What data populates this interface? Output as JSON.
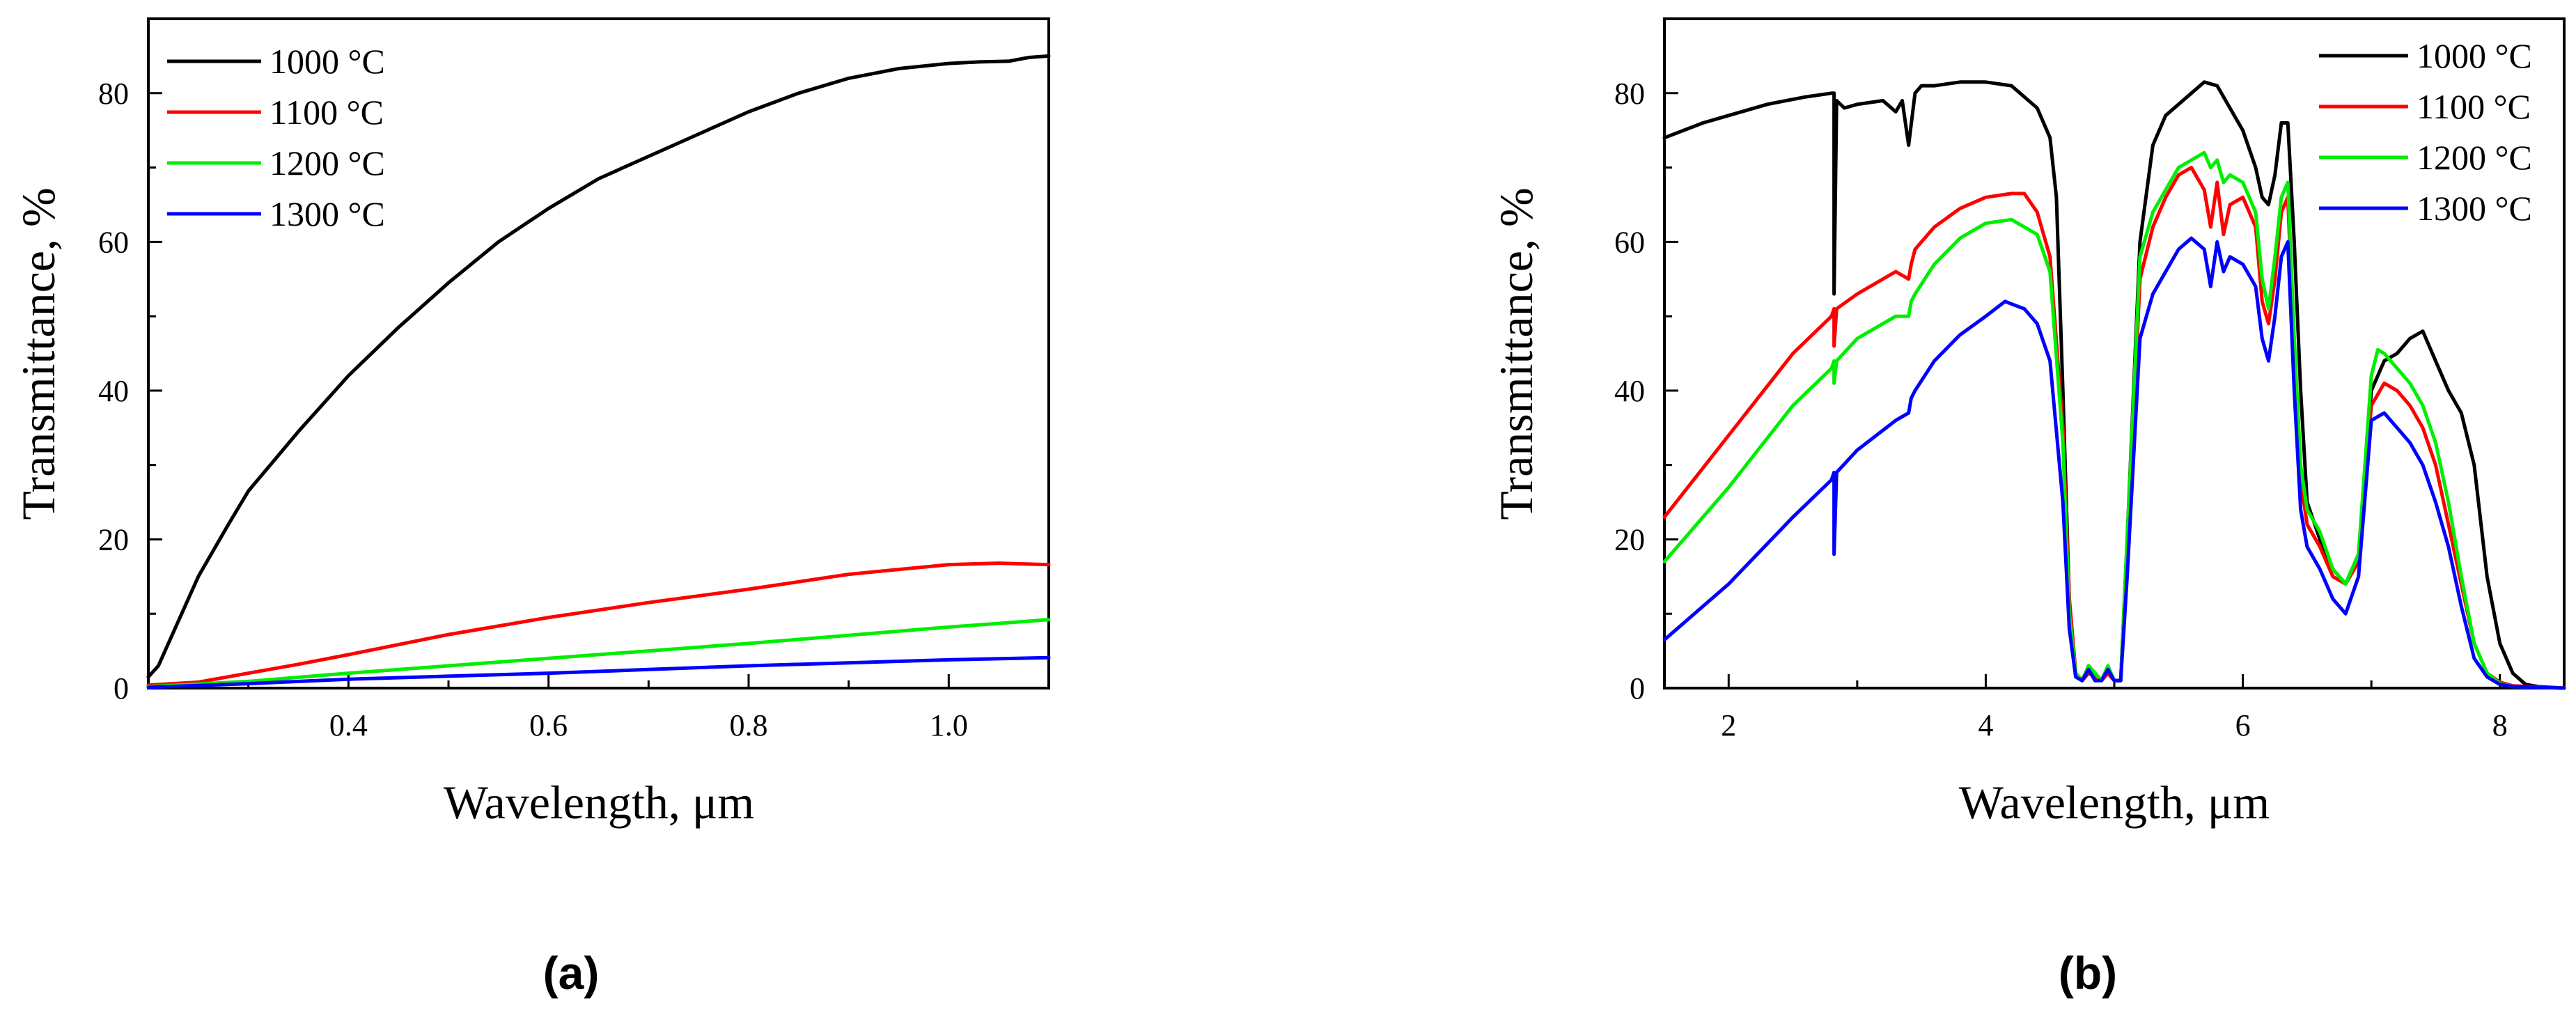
{
  "chart_data": [
    {
      "type": "line",
      "panel_label": "(a)",
      "xlabel": "Wavelength, μm",
      "ylabel": "Transmittance, %",
      "xlim": [
        0.2,
        1.1
      ],
      "ylim": [
        0,
        90
      ],
      "xticks": [
        0.4,
        0.6,
        0.8,
        1.0
      ],
      "xtick_labels": [
        "0.4",
        "0.6",
        "0.8",
        "1.0"
      ],
      "yticks": [
        0,
        20,
        40,
        60,
        80
      ],
      "ytick_labels": [
        "0",
        "20",
        "40",
        "60",
        "80"
      ],
      "legend_position": "top-left",
      "series": [
        {
          "name": "1000 °C",
          "color": "#000000",
          "x": [
            0.2,
            0.21,
            0.23,
            0.25,
            0.28,
            0.3,
            0.35,
            0.4,
            0.45,
            0.5,
            0.55,
            0.6,
            0.65,
            0.7,
            0.75,
            0.8,
            0.85,
            0.9,
            0.95,
            1.0,
            1.03,
            1.06,
            1.08,
            1.1
          ],
          "y": [
            1.5,
            3,
            9,
            15,
            22,
            26.5,
            34.5,
            42,
            48.5,
            54.5,
            60,
            64.5,
            68.5,
            71.5,
            74.5,
            77.5,
            80,
            82,
            83.3,
            84,
            84.2,
            84.3,
            84.8,
            85
          ]
        },
        {
          "name": "1100 °C",
          "color": "#ff0000",
          "x": [
            0.2,
            0.25,
            0.3,
            0.35,
            0.4,
            0.5,
            0.6,
            0.7,
            0.8,
            0.9,
            1.0,
            1.05,
            1.1
          ],
          "y": [
            0.4,
            0.8,
            2,
            3.2,
            4.5,
            7.2,
            9.5,
            11.5,
            13.3,
            15.3,
            16.6,
            16.8,
            16.6
          ]
        },
        {
          "name": "1200 °C",
          "color": "#00ee00",
          "x": [
            0.2,
            0.3,
            0.4,
            0.5,
            0.6,
            0.7,
            0.8,
            0.9,
            1.0,
            1.1
          ],
          "y": [
            0.2,
            0.9,
            2,
            3,
            4,
            5,
            6,
            7.1,
            8.2,
            9.2
          ]
        },
        {
          "name": "1300 °C",
          "color": "#0000ff",
          "x": [
            0.2,
            0.3,
            0.4,
            0.5,
            0.6,
            0.7,
            0.8,
            0.9,
            1.0,
            1.1
          ],
          "y": [
            0.1,
            0.6,
            1.2,
            1.6,
            2,
            2.5,
            3,
            3.4,
            3.8,
            4.1
          ]
        }
      ]
    },
    {
      "type": "line",
      "panel_label": "(b)",
      "xlabel": "Wavelength, μm",
      "ylabel": "Transmittance, %",
      "xlim": [
        1.5,
        8.5
      ],
      "ylim": [
        0,
        90
      ],
      "xticks": [
        2,
        4,
        6,
        8
      ],
      "xtick_labels": [
        "2",
        "4",
        "6",
        "8"
      ],
      "yticks": [
        0,
        20,
        40,
        60,
        80
      ],
      "ytick_labels": [
        "0",
        "20",
        "40",
        "60",
        "80"
      ],
      "legend_position": "top-right",
      "series": [
        {
          "name": "1000 °C",
          "color": "#000000",
          "x": [
            1.5,
            1.8,
            2.0,
            2.3,
            2.6,
            2.8,
            2.82,
            2.82,
            2.84,
            2.9,
            3.0,
            3.2,
            3.3,
            3.35,
            3.4,
            3.45,
            3.5,
            3.6,
            3.8,
            4.0,
            4.2,
            4.4,
            4.5,
            4.55,
            4.6,
            4.65,
            4.7,
            4.75,
            4.8,
            4.85,
            4.9,
            4.95,
            5.0,
            5.05,
            5.1,
            5.2,
            5.3,
            5.4,
            5.6,
            5.7,
            5.8,
            5.9,
            6.0,
            6.1,
            6.15,
            6.2,
            6.25,
            6.3,
            6.35,
            6.4,
            6.45,
            6.5,
            6.6,
            6.7,
            6.8,
            6.9,
            7.0,
            7.1,
            7.2,
            7.3,
            7.4,
            7.5,
            7.6,
            7.7,
            7.8,
            7.9,
            8.0,
            8.1,
            8.2,
            8.3,
            8.5
          ],
          "y": [
            74,
            76,
            77,
            78.5,
            79.5,
            80,
            80,
            53,
            79,
            78,
            78.5,
            79,
            77.5,
            79,
            73,
            80,
            81,
            81,
            81.5,
            81.5,
            81,
            78,
            74,
            66,
            40,
            12,
            2,
            1,
            3,
            2,
            1,
            2,
            1,
            1,
            20,
            60,
            73,
            77,
            80,
            81.5,
            81,
            78,
            75,
            70,
            66,
            65,
            69,
            76,
            76,
            60,
            40,
            25,
            20,
            16,
            14,
            18,
            40,
            44,
            45,
            47,
            48,
            44,
            40,
            37,
            30,
            15,
            6,
            2,
            0.5,
            0.2,
            0
          ]
        },
        {
          "name": "1100 °C",
          "color": "#ff0000",
          "x": [
            1.5,
            2.0,
            2.5,
            2.8,
            2.82,
            2.82,
            2.84,
            3.0,
            3.3,
            3.4,
            3.42,
            3.45,
            3.6,
            3.8,
            4.0,
            4.2,
            4.3,
            4.4,
            4.5,
            4.6,
            4.65,
            4.7,
            4.75,
            4.8,
            4.85,
            4.9,
            4.95,
            5.0,
            5.05,
            5.1,
            5.2,
            5.3,
            5.4,
            5.5,
            5.6,
            5.7,
            5.75,
            5.8,
            5.85,
            5.9,
            6.0,
            6.1,
            6.15,
            6.2,
            6.25,
            6.3,
            6.35,
            6.4,
            6.45,
            6.5,
            6.6,
            6.7,
            6.8,
            6.9,
            7.0,
            7.1,
            7.2,
            7.3,
            7.4,
            7.5,
            7.6,
            7.7,
            7.8,
            7.9,
            8.0,
            8.1,
            8.5
          ],
          "y": [
            23,
            34,
            45,
            50,
            51,
            46,
            51,
            53,
            56,
            55,
            57,
            59,
            62,
            64.5,
            66,
            66.5,
            66.5,
            64,
            58,
            35,
            12,
            2,
            1,
            2,
            1.5,
            1,
            2,
            1,
            1,
            18,
            55,
            62,
            66,
            69,
            70,
            67,
            62,
            68,
            61,
            65,
            66,
            62,
            52,
            49,
            55,
            64,
            66,
            45,
            28,
            22,
            19,
            15,
            14,
            17,
            38,
            41,
            40,
            38,
            35,
            30,
            22,
            14,
            6,
            2,
            0.8,
            0.3,
            0
          ]
        },
        {
          "name": "1200 °C",
          "color": "#00ee00",
          "x": [
            1.5,
            2.0,
            2.5,
            2.8,
            2.82,
            2.82,
            2.84,
            3.0,
            3.3,
            3.4,
            3.42,
            3.45,
            3.6,
            3.8,
            4.0,
            4.2,
            4.4,
            4.5,
            4.6,
            4.65,
            4.7,
            4.75,
            4.8,
            4.85,
            4.9,
            4.95,
            5.0,
            5.05,
            5.1,
            5.2,
            5.3,
            5.4,
            5.5,
            5.6,
            5.7,
            5.75,
            5.8,
            5.85,
            5.9,
            6.0,
            6.1,
            6.15,
            6.2,
            6.25,
            6.3,
            6.35,
            6.4,
            6.45,
            6.5,
            6.6,
            6.7,
            6.8,
            6.9,
            7.0,
            7.05,
            7.1,
            7.2,
            7.3,
            7.4,
            7.5,
            7.6,
            7.7,
            7.8,
            7.9,
            8.0,
            8.1,
            8.5
          ],
          "y": [
            17,
            27,
            38,
            43,
            44,
            41,
            44,
            47,
            50,
            50,
            52,
            53,
            57,
            60.5,
            62.5,
            63,
            61,
            56,
            33,
            10,
            2,
            1,
            3,
            2,
            1,
            3,
            1,
            1,
            20,
            58,
            64,
            67,
            70,
            71,
            72,
            70,
            71,
            68,
            69,
            68,
            64,
            55,
            51,
            58,
            66,
            68,
            47,
            30,
            24,
            21,
            16,
            14,
            18,
            42,
            45.5,
            45,
            43,
            41,
            38,
            33,
            25,
            15,
            6,
            2,
            0.6,
            0.2,
            0
          ]
        },
        {
          "name": "1300 °C",
          "color": "#0000ff",
          "x": [
            1.5,
            2.0,
            2.5,
            2.8,
            2.82,
            2.82,
            2.84,
            3.0,
            3.3,
            3.4,
            3.42,
            3.45,
            3.6,
            3.8,
            4.0,
            4.15,
            4.3,
            4.4,
            4.5,
            4.6,
            4.65,
            4.7,
            4.75,
            4.8,
            4.85,
            4.9,
            4.95,
            5.0,
            5.05,
            5.1,
            5.2,
            5.3,
            5.4,
            5.5,
            5.6,
            5.7,
            5.75,
            5.8,
            5.85,
            5.9,
            6.0,
            6.1,
            6.15,
            6.2,
            6.25,
            6.3,
            6.35,
            6.4,
            6.45,
            6.5,
            6.6,
            6.7,
            6.8,
            6.9,
            7.0,
            7.1,
            7.2,
            7.3,
            7.4,
            7.5,
            7.6,
            7.7,
            7.8,
            7.9,
            8.0,
            8.1,
            8.5
          ],
          "y": [
            6.5,
            14,
            23,
            28,
            29,
            18,
            29,
            32,
            36,
            37,
            39,
            40,
            44,
            47.5,
            50,
            52,
            51,
            49,
            44,
            25,
            8,
            1.5,
            1,
            2.5,
            1,
            1,
            2.5,
            1,
            1,
            15,
            47,
            53,
            56,
            59,
            60.5,
            59,
            54,
            60,
            56,
            58,
            57,
            54,
            47,
            44,
            50,
            58,
            60,
            40,
            24,
            19,
            16,
            12,
            10,
            15,
            36,
            37,
            35,
            33,
            30,
            25,
            19,
            11,
            4,
            1.5,
            0.5,
            0.2,
            0
          ]
        }
      ]
    }
  ]
}
